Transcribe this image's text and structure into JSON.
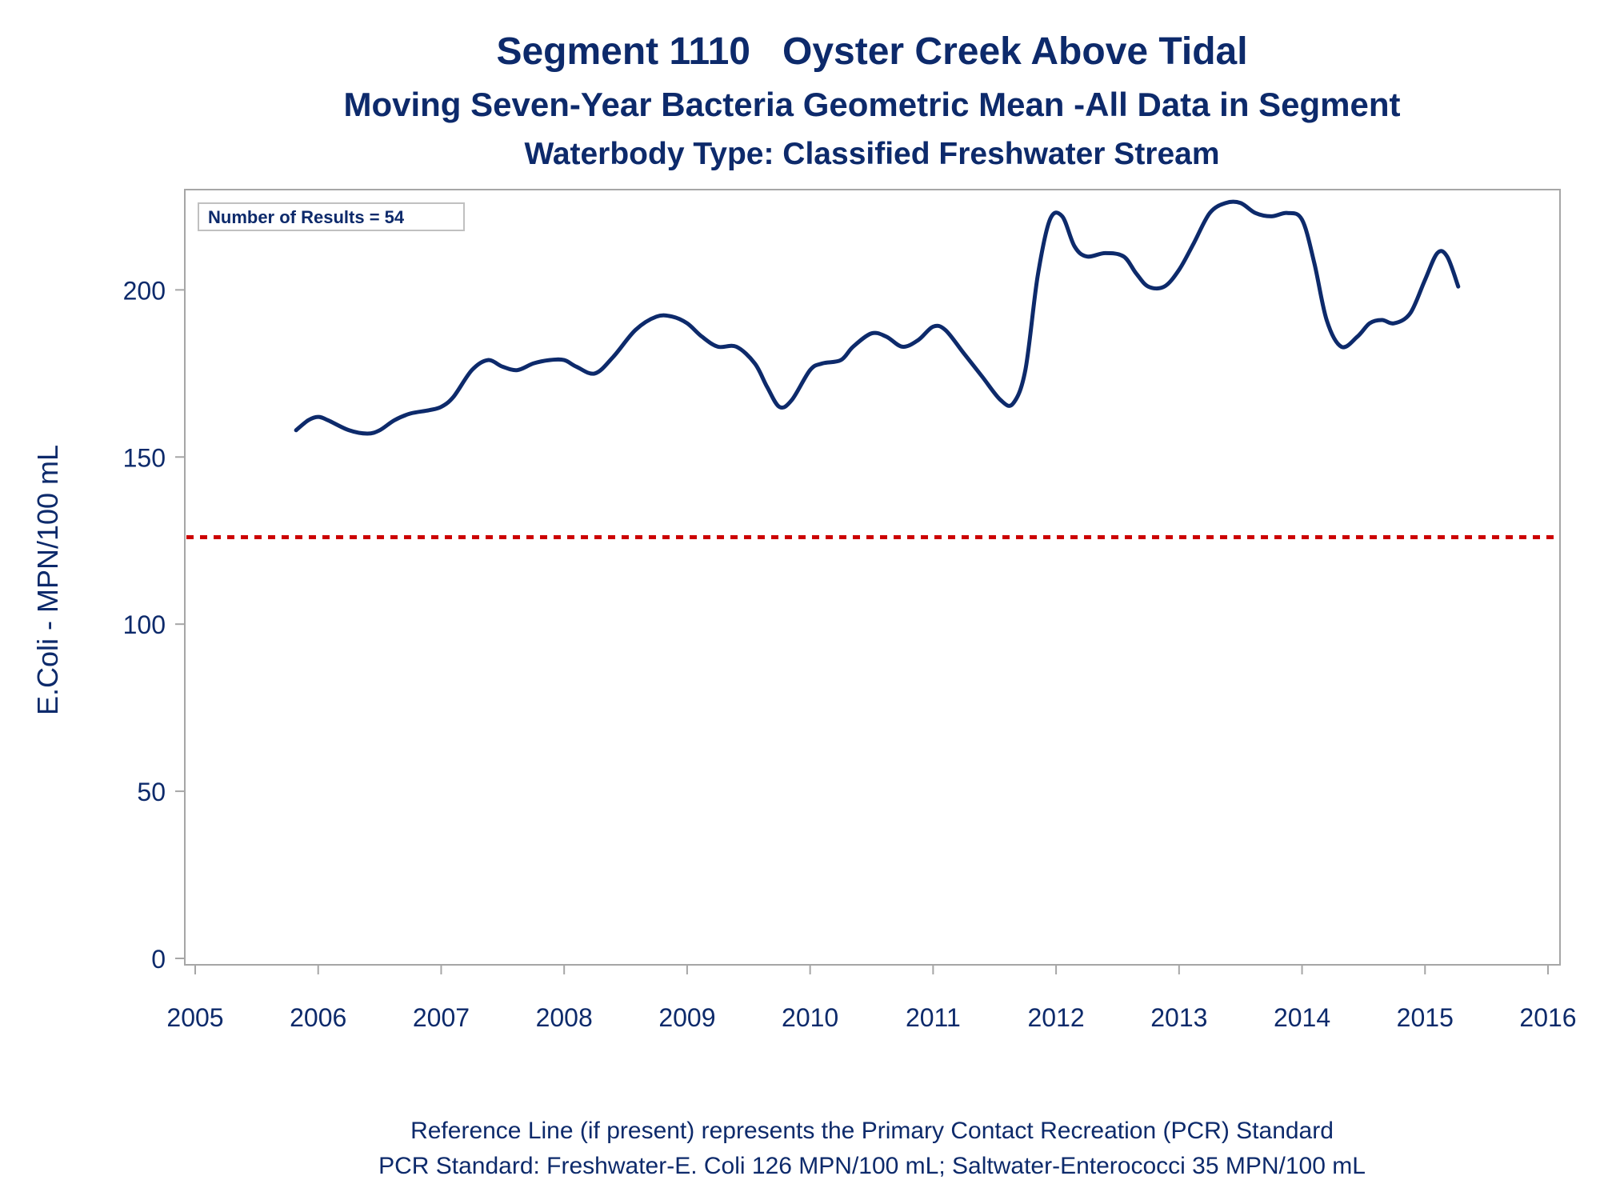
{
  "chart_data": {
    "type": "line",
    "title": "Segment 1110   Oyster Creek Above Tidal",
    "subtitle": "Moving Seven-Year Bacteria Geometric Mean -All Data in Segment",
    "subtitle2": "Waterbody Type: Classified Freshwater Stream",
    "xlabel": "",
    "ylabel": "E.Coli - MPN/100 mL",
    "xlim": [
      2005,
      2016
    ],
    "ylim": [
      0,
      230
    ],
    "x_ticks": [
      "2005",
      "2006",
      "2007",
      "2008",
      "2009",
      "2010",
      "2011",
      "2012",
      "2013",
      "2014",
      "2015",
      "2016"
    ],
    "y_ticks": [
      "0",
      "50",
      "100",
      "150",
      "200"
    ],
    "grid": false,
    "legend": "none",
    "annotation": "Number of Results = 54",
    "reference_line": {
      "value": 126,
      "style": "dotted",
      "color": "#cc0000"
    },
    "series": [
      {
        "color": "#0d2a6b",
        "x": [
          2005.82,
          2005.92,
          2006.0,
          2006.08,
          2006.25,
          2006.4,
          2006.5,
          2006.62,
          2006.75,
          2006.9,
          2007.0,
          2007.1,
          2007.25,
          2007.38,
          2007.5,
          2007.62,
          2007.75,
          2007.88,
          2008.0,
          2008.1,
          2008.25,
          2008.4,
          2008.58,
          2008.75,
          2008.88,
          2009.0,
          2009.12,
          2009.25,
          2009.4,
          2009.55,
          2009.65,
          2009.75,
          2009.85,
          2010.0,
          2010.1,
          2010.25,
          2010.35,
          2010.5,
          2010.62,
          2010.75,
          2010.88,
          2011.0,
          2011.1,
          2011.25,
          2011.4,
          2011.55,
          2011.65,
          2011.75,
          2011.85,
          2011.95,
          2012.05,
          2012.15,
          2012.25,
          2012.4,
          2012.55,
          2012.65,
          2012.75,
          2012.88,
          2013.0,
          2013.12,
          2013.25,
          2013.38,
          2013.5,
          2013.62,
          2013.75,
          2013.88,
          2014.0,
          2014.1,
          2014.2,
          2014.32,
          2014.45,
          2014.55,
          2014.65,
          2014.75,
          2014.88,
          2015.0,
          2015.1,
          2015.18,
          2015.27
        ],
        "values": [
          158,
          161,
          162,
          161,
          158,
          157,
          158,
          161,
          163,
          164,
          165,
          168,
          176,
          179,
          177,
          176,
          178,
          179,
          179,
          177,
          175,
          180,
          188,
          192,
          192,
          190,
          186,
          183,
          183,
          178,
          171,
          165,
          167,
          176,
          178,
          179,
          183,
          187,
          186,
          183,
          185,
          189,
          188,
          181,
          174,
          167,
          166,
          176,
          204,
          221,
          222,
          213,
          210,
          211,
          210,
          205,
          201,
          201,
          206,
          214,
          223,
          226,
          226,
          223,
          222,
          223,
          221,
          208,
          191,
          183,
          186,
          190,
          191,
          190,
          193,
          203,
          211,
          210,
          201
        ]
      }
    ],
    "footnotes": [
      "Reference Line (if present) represents the Primary Contact Recreation (PCR) Standard",
      "PCR Standard: Freshwater-E. Coli 126 MPN/100 mL; Saltwater-Enterococci 35 MPN/100 mL"
    ]
  }
}
